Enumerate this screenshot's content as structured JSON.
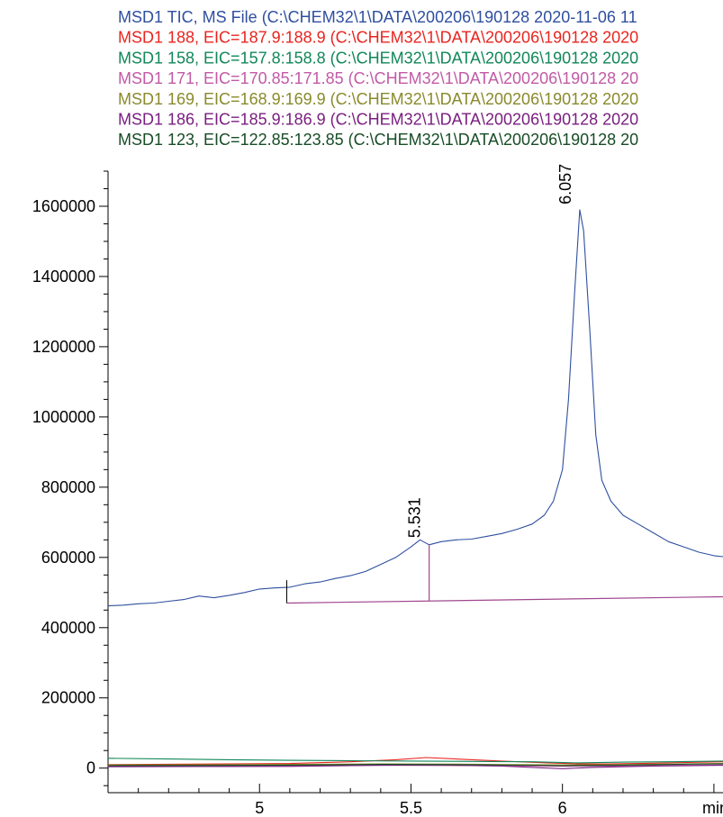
{
  "chart_data": {
    "type": "line",
    "title": "",
    "xlabel": "min",
    "ylabel": "",
    "xlim": [
      4.5,
      6.53
    ],
    "ylim": [
      -70000,
      1700000
    ],
    "grid": false,
    "legend_placement": "top",
    "x_ticks": [
      "5",
      "5.5",
      "6"
    ],
    "y_ticks": [
      "0",
      "200000",
      "400000",
      "600000",
      "800000",
      "1000000",
      "1200000",
      "1400000",
      "1600000"
    ],
    "legend": [
      {
        "label": "MSD1 TIC, MS File (C:\\CHEM32\\1\\DATA\\200206\\190128 2020-11-06 11",
        "color": "#2f4f9f"
      },
      {
        "label": "MSD1 188, EIC=187.9:188.9 (C:\\CHEM32\\1\\DATA\\200206\\190128 2020",
        "color": "#e8251f"
      },
      {
        "label": "MSD1 158, EIC=157.8:158.8 (C:\\CHEM32\\1\\DATA\\200206\\190128 2020",
        "color": "#11875a"
      },
      {
        "label": "MSD1 171, EIC=170.85:171.85 (C:\\CHEM32\\1\\DATA\\200206\\190128 20",
        "color": "#c25aa6"
      },
      {
        "label": "MSD1 169, EIC=168.9:169.9 (C:\\CHEM32\\1\\DATA\\200206\\190128 2020",
        "color": "#8a8a2c"
      },
      {
        "label": "MSD1 186, EIC=185.9:186.9 (C:\\CHEM32\\1\\DATA\\200206\\190128 2020",
        "color": "#7a1f80"
      },
      {
        "label": "MSD1 123, EIC=122.85:123.85 (C:\\CHEM32\\1\\DATA\\200206\\190128 20",
        "color": "#174d26"
      }
    ],
    "series": [
      {
        "name": "MSD1 TIC",
        "color": "#2f4f9f",
        "x": [
          4.5,
          4.55,
          4.6,
          4.65,
          4.7,
          4.75,
          4.8,
          4.85,
          4.9,
          4.95,
          5.0,
          5.05,
          5.1,
          5.15,
          5.2,
          5.25,
          5.3,
          5.35,
          5.4,
          5.45,
          5.5,
          5.53,
          5.56,
          5.6,
          5.65,
          5.7,
          5.75,
          5.8,
          5.85,
          5.9,
          5.94,
          5.97,
          6.0,
          6.02,
          6.04,
          6.057,
          6.07,
          6.09,
          6.11,
          6.13,
          6.16,
          6.2,
          6.25,
          6.3,
          6.35,
          6.4,
          6.45,
          6.5,
          6.53
        ],
        "y": [
          462000,
          464000,
          468000,
          470000,
          475000,
          480000,
          490000,
          485000,
          492000,
          500000,
          510000,
          513000,
          515000,
          525000,
          530000,
          540000,
          548000,
          560000,
          580000,
          600000,
          630000,
          650000,
          636000,
          645000,
          650000,
          652000,
          660000,
          668000,
          680000,
          695000,
          720000,
          760000,
          850000,
          1050000,
          1350000,
          1590000,
          1530000,
          1250000,
          950000,
          820000,
          760000,
          720000,
          695000,
          670000,
          645000,
          630000,
          615000,
          605000,
          602000
        ]
      },
      {
        "name": "MSD1 188",
        "color": "#e8251f",
        "x": [
          4.5,
          4.7,
          4.9,
          5.1,
          5.3,
          5.45,
          5.55,
          5.65,
          5.8,
          5.95,
          6.05,
          6.15,
          6.3,
          6.4,
          6.53
        ],
        "y": [
          10000,
          11000,
          12000,
          13000,
          18000,
          24000,
          30000,
          26000,
          20000,
          15000,
          12000,
          12000,
          14000,
          16000,
          18000
        ]
      },
      {
        "name": "MSD1 158",
        "color": "#11875a",
        "x": [
          4.5,
          4.7,
          4.9,
          5.1,
          5.3,
          5.5,
          5.7,
          5.9,
          6.05,
          6.2,
          6.35,
          6.53
        ],
        "y": [
          28000,
          26000,
          24000,
          22000,
          21000,
          20000,
          19000,
          18000,
          15000,
          17000,
          18000,
          20000
        ]
      },
      {
        "name": "MSD1 171",
        "color": "#c25aa6",
        "x": [
          4.5,
          4.8,
          5.1,
          5.4,
          5.7,
          6.0,
          6.2,
          6.4,
          6.53
        ],
        "y": [
          6000,
          6000,
          7000,
          8000,
          7000,
          5000,
          6000,
          8000,
          9000
        ]
      },
      {
        "name": "MSD1 169",
        "color": "#8a8a2c",
        "x": [
          4.5,
          4.8,
          5.1,
          5.4,
          5.7,
          6.0,
          6.2,
          6.4,
          6.53
        ],
        "y": [
          9000,
          9500,
          10500,
          12000,
          11000,
          9000,
          10000,
          12000,
          13000
        ]
      },
      {
        "name": "MSD1 186",
        "color": "#7a1f80",
        "x": [
          4.5,
          4.8,
          5.1,
          5.4,
          5.6,
          5.8,
          6.0,
          6.1,
          6.3,
          6.53
        ],
        "y": [
          4000,
          4500,
          5000,
          8000,
          9000,
          6000,
          -2000,
          2000,
          6000,
          8000
        ]
      },
      {
        "name": "MSD1 123",
        "color": "#174d26",
        "x": [
          4.5,
          4.8,
          5.1,
          5.4,
          5.7,
          6.0,
          6.2,
          6.4,
          6.53
        ],
        "y": [
          7000,
          7500,
          8500,
          10500,
          9500,
          7000,
          8500,
          11000,
          12000
        ]
      }
    ],
    "peak_labels": [
      {
        "label": "5.531",
        "x": 5.56,
        "y": 640000
      },
      {
        "label": "6.057",
        "x": 6.057,
        "y": 1590000
      }
    ],
    "integration_baseline": {
      "color": "#a0468f",
      "x": [
        5.09,
        6.53
      ],
      "y": [
        470000,
        488000
      ],
      "start_tick": {
        "x": 5.09,
        "y_top": 535000,
        "y_bottom": 470000
      },
      "split_drop": {
        "x": 5.56,
        "y_top": 636000
      }
    }
  }
}
